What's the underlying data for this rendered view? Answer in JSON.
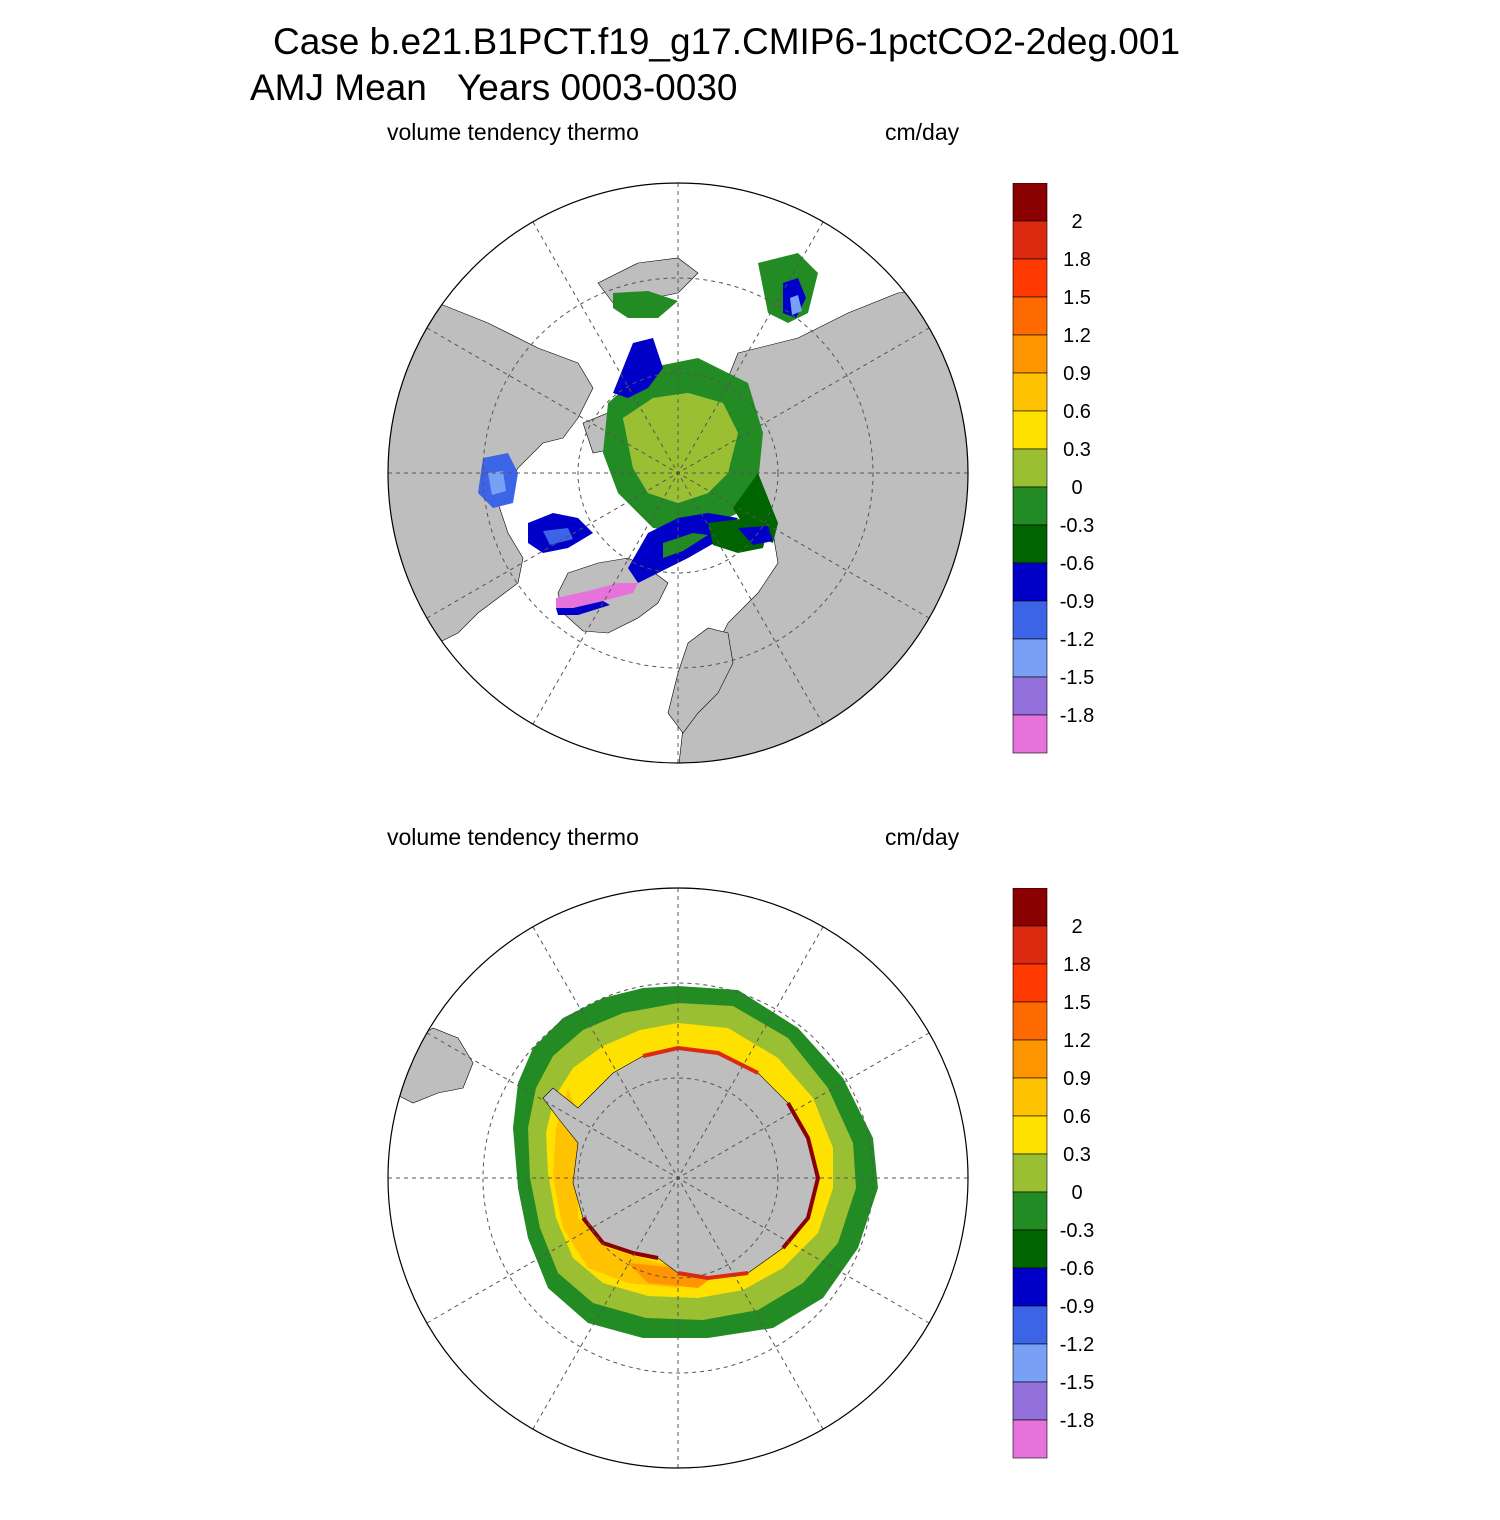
{
  "figure": {
    "title_line1": "Case b.e21.B1PCT.f19_g17.CMIP6-1pctCO2-2deg.001",
    "title_line2": "AMJ Mean   Years 0003-0030"
  },
  "colorbar": {
    "colors": [
      "#8b0000",
      "#dc2a10",
      "#ff3a00",
      "#ff6a00",
      "#ff9500",
      "#ffc200",
      "#ffe100",
      "#9bbf32",
      "#238b23",
      "#006400",
      "#0000c8",
      "#3c64e6",
      "#78a0f5",
      "#9370db",
      "#e673dc"
    ],
    "labels": [
      "2",
      "1.8",
      "1.5",
      "1.2",
      "0.9",
      "0.6",
      "0.3",
      "0",
      "-0.3",
      "-0.6",
      "-0.9",
      "-1.2",
      "-1.5",
      "-1.8"
    ]
  },
  "colors": {
    "land": "#bebebe",
    "ocean": "#ffffff",
    "grid": "#555555"
  },
  "panels": [
    {
      "id": "arctic",
      "left_label": "volume tendency thermo",
      "right_label": "cm/day",
      "hemisphere": "north",
      "dominant_colors": [
        "#9bbf32",
        "#238b23",
        "#006400",
        "#0000c8",
        "#3c64e6",
        "#78a0f5",
        "#e673dc"
      ]
    },
    {
      "id": "antarctic",
      "left_label": "volume tendency thermo",
      "right_label": "cm/day",
      "hemisphere": "south",
      "dominant_colors": [
        "#238b23",
        "#9bbf32",
        "#ffe100",
        "#ffc200",
        "#ff9500",
        "#dc2a10",
        "#8b0000"
      ]
    }
  ]
}
